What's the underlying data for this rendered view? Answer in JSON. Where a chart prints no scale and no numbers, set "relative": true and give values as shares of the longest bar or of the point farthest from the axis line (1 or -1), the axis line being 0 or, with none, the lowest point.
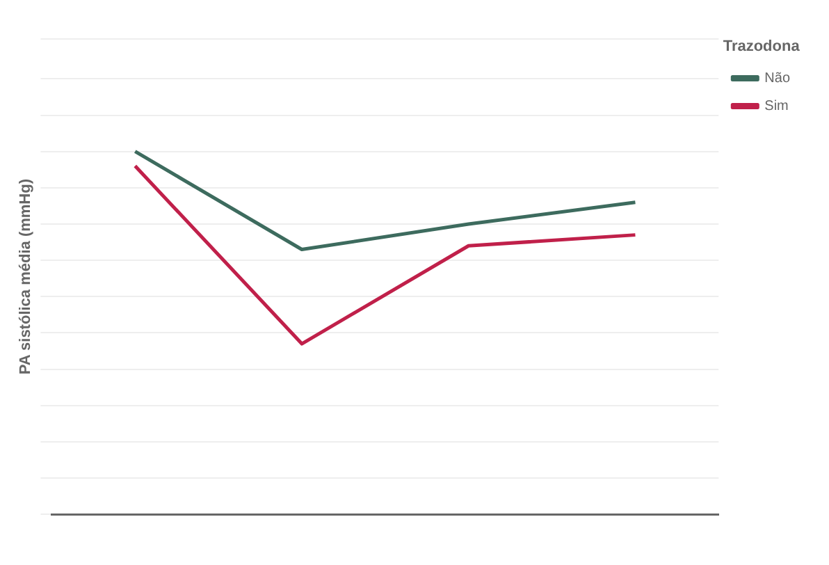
{
  "chart_data": {
    "type": "line",
    "ylabel": "PA sistólica média (mmHg)",
    "legend_title": "Trazodona",
    "relative": true,
    "categories": [
      null,
      null,
      null,
      null
    ],
    "series": [
      {
        "name": "Não",
        "color": "#3d6b5e",
        "values": [
          1,
          0.73,
          0.8,
          0.86
        ]
      },
      {
        "name": "Sim",
        "color": "#c0204a",
        "values": [
          0.96,
          0.47,
          0.74,
          0.77
        ]
      }
    ],
    "legend": "top right",
    "grid": "y",
    "marker": "none",
    "line_style": "solid"
  }
}
